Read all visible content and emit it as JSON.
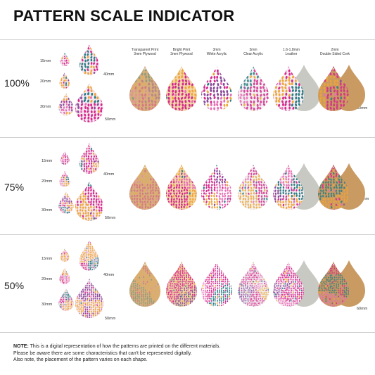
{
  "title": "PATTERN SCALE INDICATOR",
  "materials": [
    "Transparent Print\n3mm Plywood",
    "Bright Print\n3mm Plywood",
    "3mm\nWhite Acrylic",
    "3mm\nClear Acrylic",
    "1.6-1.8mm\nLeather",
    "2mm\nDouble Sided Cork"
  ],
  "sections": [
    {
      "scale": "100%",
      "sizes": {
        "s15": "15mm",
        "s20": "20mm",
        "s30": "30mm",
        "s40": "40mm",
        "s50": "50mm",
        "s60": "60mm"
      }
    },
    {
      "scale": "75%",
      "sizes": {
        "s15": "15mm",
        "s20": "20mm",
        "s30": "30mm",
        "s40": "40mm",
        "s50": "50mm",
        "s60": "60mm"
      }
    },
    {
      "scale": "50%",
      "sizes": {
        "s15": "15mm",
        "s20": "20mm",
        "s30": "30mm",
        "s40": "40mm",
        "s50": "50mm",
        "s60": "60mm"
      }
    }
  ],
  "colors": {
    "magenta": "#d52a8c",
    "orange": "#eea53a",
    "teal": "#2c7d84",
    "pink": "#e66fb5",
    "purple": "#8a4a9a",
    "plywood": "#d8b07a",
    "leather_back": "#c9c9c4",
    "cork_back": "#c99a62"
  },
  "note": {
    "label": "NOTE:",
    "line1": " This is a digital representation of how the patterns are printed on the different materials.",
    "line2": "Please be aware there are some characteristics that can't be represented digitally.",
    "line3": "Also note, the placement of the pattern varies on each shape."
  }
}
